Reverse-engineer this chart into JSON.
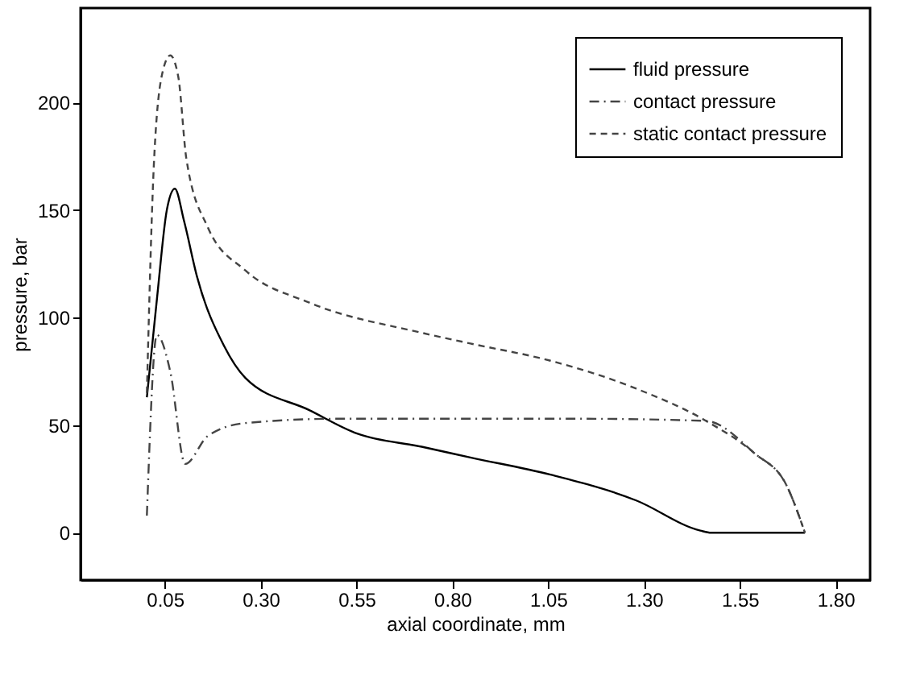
{
  "chart_data": {
    "type": "line",
    "xlabel": "axial coordinate, mm",
    "ylabel": "pressure, bar",
    "xlim": [
      -0.17,
      1.89
    ],
    "xticks": [
      {
        "value": 0.05,
        "label": "0.05"
      },
      {
        "value": 0.3,
        "label": "0.30"
      },
      {
        "value": 0.55,
        "label": "0.55"
      },
      {
        "value": 0.8,
        "label": "0.80"
      },
      {
        "value": 1.05,
        "label": "1.05"
      },
      {
        "value": 1.3,
        "label": "1.30"
      },
      {
        "value": 1.55,
        "label": "1.55"
      },
      {
        "value": 1.8,
        "label": "1.80"
      }
    ],
    "ylim": [
      -22,
      244
    ],
    "yticks": [
      0,
      50,
      100,
      150,
      200
    ],
    "grid": false,
    "legend": "top right",
    "marker": "none",
    "series": [
      {
        "name": "fluid pressure",
        "color": "#000000",
        "line_style": "solid",
        "x": [
          0.003,
          0.03,
          0.055,
          0.076,
          0.1,
          0.134,
          0.204,
          0.26,
          0.427,
          0.553,
          0.72,
          0.847,
          1.056,
          1.28,
          1.447,
          1.475,
          1.72
        ],
        "values": [
          63,
          110,
          150,
          160,
          145,
          119,
          87,
          72,
          57,
          46,
          40,
          35,
          27,
          15,
          1,
          0,
          0
        ]
      },
      {
        "name": "contact pressure",
        "color": "#444444",
        "line_style": "dashdot",
        "x": [
          0.003,
          0.029,
          0.064,
          0.103,
          0.162,
          0.26,
          0.497,
          0.72,
          1.14,
          1.462,
          1.588,
          1.672,
          1.72
        ],
        "values": [
          8,
          92,
          75,
          32,
          45,
          51,
          53,
          53,
          53,
          52,
          37,
          22,
          0
        ]
      },
      {
        "name": "static contact pressure",
        "color": "#444444",
        "line_style": "dashed",
        "x": [
          0.003,
          0.022,
          0.045,
          0.064,
          0.085,
          0.106,
          0.162,
          0.26,
          0.427,
          0.72,
          0.847,
          1.056,
          1.28,
          1.462,
          1.588,
          1.672,
          1.72
        ],
        "values": [
          65,
          174,
          215,
          222,
          212,
          174,
          142,
          122,
          107,
          93,
          88,
          80,
          67,
          52,
          37,
          22,
          0
        ]
      }
    ]
  }
}
